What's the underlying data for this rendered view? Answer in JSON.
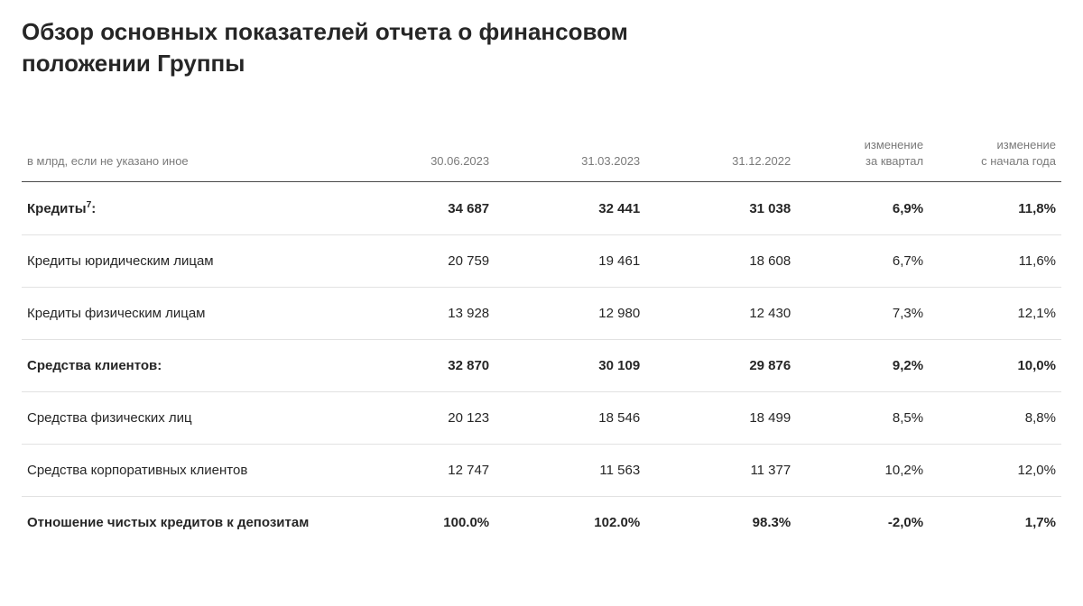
{
  "title": "Обзор основных показателей отчета о финансовом положении Группы",
  "table": {
    "type": "table",
    "background_color": "#ffffff",
    "header_text_color": "#7a7a7a",
    "body_text_color": "#262626",
    "header_border_color": "#4a4a4a",
    "row_border_color": "#e2e2e2",
    "header_fontsize": 13,
    "body_fontsize": 15,
    "title_fontsize": 26,
    "columns": [
      {
        "label": "в млрд, если не указано иное",
        "align": "left",
        "width_pct": 31
      },
      {
        "label": "30.06.2023",
        "align": "right",
        "width_pct": 14.5
      },
      {
        "label": "31.03.2023",
        "align": "right",
        "width_pct": 14.5
      },
      {
        "label": "31.12.2022",
        "align": "right",
        "width_pct": 14.5
      },
      {
        "label": "изменение за квартал",
        "align": "right",
        "width_pct": 12.75,
        "two_line": [
          "изменение",
          "за квартал"
        ]
      },
      {
        "label": "изменение с начала года",
        "align": "right",
        "width_pct": 12.75,
        "two_line": [
          "изменение",
          "с начала года"
        ]
      }
    ],
    "rows": [
      {
        "bold": true,
        "label_html": "Кредиты<sup>7</sup>:",
        "values": [
          "34 687",
          "32 441",
          "31 038",
          "6,9%",
          "11,8%"
        ]
      },
      {
        "bold": false,
        "label_html": "Кредиты юридическим лицам",
        "values": [
          "20 759",
          "19 461",
          "18 608",
          "6,7%",
          "11,6%"
        ]
      },
      {
        "bold": false,
        "label_html": "Кредиты физическим лицам",
        "values": [
          "13 928",
          "12 980",
          "12 430",
          "7,3%",
          "12,1%"
        ]
      },
      {
        "bold": true,
        "label_html": "Средства клиентов:",
        "values": [
          "32 870",
          "30 109",
          "29 876",
          "9,2%",
          "10,0%"
        ]
      },
      {
        "bold": false,
        "label_html": "Средства физических лиц",
        "values": [
          "20 123",
          "18 546",
          "18 499",
          "8,5%",
          "8,8%"
        ]
      },
      {
        "bold": false,
        "label_html": "Средства корпоративных клиентов",
        "values": [
          "12 747",
          "11 563",
          "11 377",
          "10,2%",
          "12,0%"
        ]
      },
      {
        "bold": true,
        "label_html": "Отношение чистых кредитов к депозитам",
        "values": [
          "100.0%",
          "102.0%",
          "98.3%",
          "-2,0%",
          "1,7%"
        ]
      }
    ]
  }
}
